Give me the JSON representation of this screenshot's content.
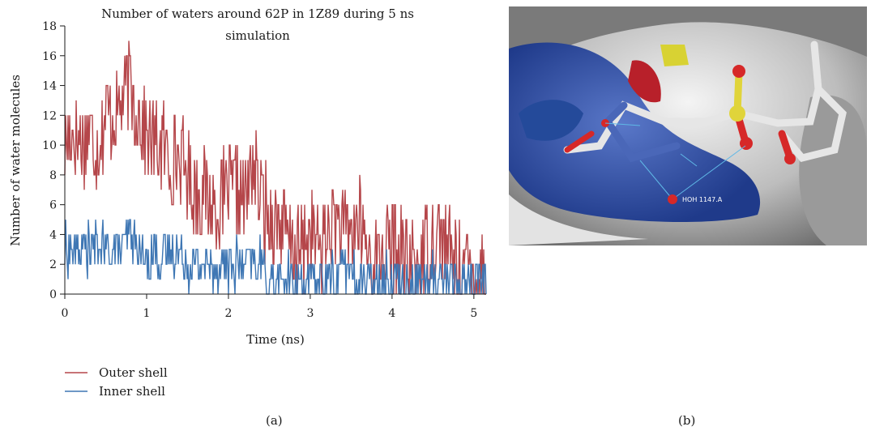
{
  "panel_labels": {
    "a": "(a)",
    "b": "(b)"
  },
  "panel_b": {
    "water_label": "HOH 1147.A"
  },
  "chart_data": {
    "type": "line",
    "title_lines": [
      "Number of waters around 62P in 1Z89 during 5 ns",
      "simulation"
    ],
    "xlabel": "Time (ns)",
    "ylabel": "Number of water molecules",
    "xlim": [
      0,
      5.15
    ],
    "ylim": [
      0,
      18
    ],
    "xticks": [
      0,
      1,
      2,
      3,
      4,
      5
    ],
    "yticks": [
      0,
      2,
      4,
      6,
      8,
      10,
      12,
      14,
      16,
      18
    ],
    "grid": false,
    "legend_position": "bottom-left",
    "series": [
      {
        "name": "Outer shell",
        "color": "#b5464a",
        "x": [
          0,
          0.1,
          0.2,
          0.3,
          0.4,
          0.5,
          0.6,
          0.7,
          0.8,
          0.9,
          1.0,
          1.1,
          1.2,
          1.3,
          1.4,
          1.5,
          1.6,
          1.7,
          1.8,
          1.9,
          2.0,
          2.1,
          2.2,
          2.3,
          2.4,
          2.5,
          2.6,
          2.7,
          2.8,
          2.9,
          3.0,
          3.1,
          3.2,
          3.3,
          3.4,
          3.5,
          3.6,
          3.7,
          3.8,
          3.9,
          4.0,
          4.1,
          4.2,
          4.3,
          4.4,
          4.5,
          4.6,
          4.7,
          4.8,
          4.9,
          5.0,
          5.1
        ],
        "y": [
          10,
          11,
          10,
          11,
          10,
          12,
          12,
          13,
          14,
          12,
          11,
          10,
          10,
          9,
          9,
          8,
          7,
          7,
          6,
          6,
          7,
          7,
          6,
          9,
          6,
          5,
          5,
          4,
          3,
          3,
          4,
          3,
          4,
          5,
          4,
          4,
          5,
          3,
          2,
          3,
          3,
          3,
          2,
          2,
          3,
          4,
          4,
          3,
          2,
          2,
          1,
          2
        ]
      },
      {
        "name": "Inner shell",
        "color": "#3f77b4",
        "x": [
          0,
          0.1,
          0.2,
          0.3,
          0.4,
          0.5,
          0.6,
          0.7,
          0.8,
          0.9,
          1.0,
          1.1,
          1.2,
          1.3,
          1.4,
          1.5,
          1.6,
          1.7,
          1.8,
          1.9,
          2.0,
          2.1,
          2.2,
          2.3,
          2.4,
          2.5,
          2.6,
          2.7,
          2.8,
          2.9,
          3.0,
          3.1,
          3.2,
          3.3,
          3.4,
          3.5,
          3.6,
          3.7,
          3.8,
          3.9,
          4.0,
          4.1,
          4.2,
          4.3,
          4.4,
          4.5,
          4.6,
          4.7,
          4.8,
          4.9,
          5.0,
          5.1
        ],
        "y": [
          3,
          3,
          3,
          3,
          3,
          3,
          3,
          3,
          4,
          3,
          2,
          3,
          2,
          3,
          3,
          2,
          2,
          2,
          2,
          2,
          2,
          2,
          2,
          2,
          2,
          1,
          1,
          1,
          1,
          1,
          1,
          1,
          1,
          1,
          2,
          1,
          1,
          1,
          1,
          1,
          1,
          1,
          1,
          1,
          1,
          1,
          1,
          1,
          1,
          1,
          1,
          1
        ]
      }
    ]
  }
}
